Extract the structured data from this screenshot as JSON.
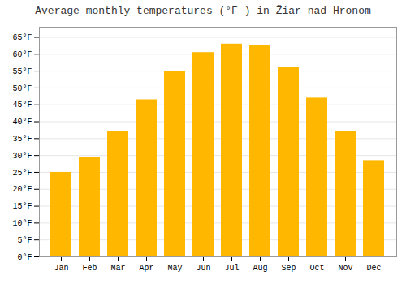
{
  "chart_data": {
    "type": "bar",
    "title": "Average monthly temperatures (°F ) in Žiar nad Hronom",
    "categories": [
      "Jan",
      "Feb",
      "Mar",
      "Apr",
      "May",
      "Jun",
      "Jul",
      "Aug",
      "Sep",
      "Oct",
      "Nov",
      "Dec"
    ],
    "values": [
      25,
      29.5,
      37,
      46.5,
      55,
      60.5,
      63,
      62.5,
      56,
      47,
      37,
      28.5
    ],
    "color": "#FFB700",
    "ylim": [
      0,
      68
    ],
    "yticks": [
      {
        "value": 0,
        "label": "0°F"
      },
      {
        "value": 5,
        "label": "5°F"
      },
      {
        "value": 10,
        "label": "10°F"
      },
      {
        "value": 15,
        "label": "15°F"
      },
      {
        "value": 20,
        "label": "20°F"
      },
      {
        "value": 25,
        "label": "25°F"
      },
      {
        "value": 30,
        "label": "30°F"
      },
      {
        "value": 35,
        "label": "35°F"
      },
      {
        "value": 40,
        "label": "40°F"
      },
      {
        "value": 45,
        "label": "45°F"
      },
      {
        "value": 50,
        "label": "50°F"
      },
      {
        "value": 55,
        "label": "55°F"
      },
      {
        "value": 60,
        "label": "60°F"
      },
      {
        "value": 65,
        "label": "65°F"
      }
    ],
    "grid": true
  }
}
